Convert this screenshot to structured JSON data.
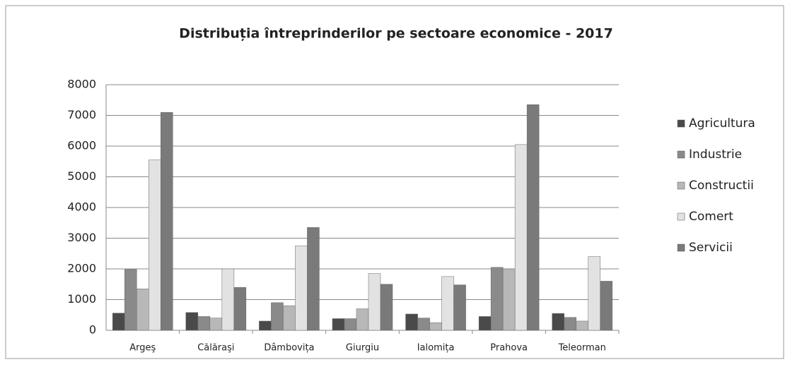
{
  "chart_data": {
    "type": "bar",
    "title": "Distribuția întreprinderilor pe sectoare economice - 2017",
    "categories": [
      "Argeş",
      "Călăraşi",
      "Dâmbovița",
      "Giurgiu",
      "Ialomița",
      "Prahova",
      "Teleorman"
    ],
    "series": [
      {
        "name": "Agricultura",
        "color": "#4a4a4a",
        "values": [
          560,
          580,
          300,
          380,
          530,
          450,
          550
        ]
      },
      {
        "name": "Industrie",
        "color": "#8a8a8a",
        "values": [
          1980,
          450,
          900,
          380,
          400,
          2050,
          420
        ]
      },
      {
        "name": "Constructii",
        "color": "#b8b8b8",
        "values": [
          1350,
          400,
          800,
          700,
          250,
          2000,
          300
        ]
      },
      {
        "name": "Comert",
        "color": "#e2e2e2",
        "values": [
          5550,
          2000,
          2750,
          1850,
          1750,
          6050,
          2400
        ]
      },
      {
        "name": "Servicii",
        "color": "#7a7a7a",
        "values": [
          7100,
          1400,
          3350,
          1500,
          1480,
          7350,
          1600
        ]
      }
    ],
    "ylim": [
      0,
      8000
    ],
    "yticks": [
      0,
      1000,
      2000,
      3000,
      4000,
      5000,
      6000,
      7000,
      8000
    ],
    "grid": true,
    "legend": "right"
  }
}
